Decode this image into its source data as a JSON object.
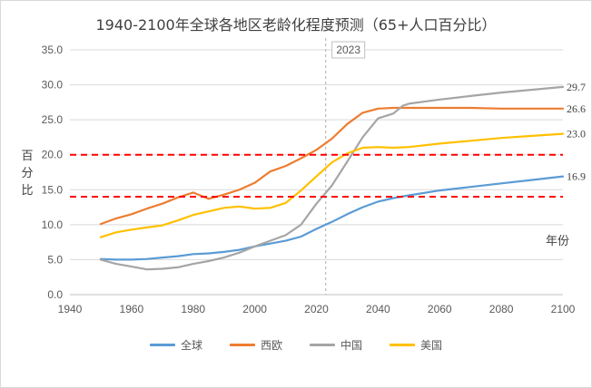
{
  "chart_data": {
    "type": "line",
    "title": "1940-2100年全球各地区老龄化程度预测（65+人口百分比）",
    "ylabel": "百分比",
    "xlabel": "年份",
    "xlim": [
      1940,
      2100
    ],
    "ylim": [
      0,
      35
    ],
    "xticks": [
      "1940",
      "1960",
      "1980",
      "2000",
      "2020",
      "2040",
      "2060",
      "2080",
      "2100"
    ],
    "yticks": [
      "0.0",
      "5.0",
      "10.0",
      "15.0",
      "20.0",
      "25.0",
      "30.0",
      "35.0"
    ],
    "grid": "horizontal",
    "legend_position": "bottom",
    "vertical_marker": {
      "x": 2023,
      "label": "2023"
    },
    "reference_lines": [
      20,
      14
    ],
    "series": [
      {
        "name": "全球",
        "color": "#5B9BD5",
        "end_label": "16.9",
        "points": [
          [
            1950,
            5.1
          ],
          [
            1955,
            5.0
          ],
          [
            1960,
            5.0
          ],
          [
            1965,
            5.1
          ],
          [
            1970,
            5.3
          ],
          [
            1975,
            5.5
          ],
          [
            1980,
            5.8
          ],
          [
            1985,
            5.9
          ],
          [
            1990,
            6.1
          ],
          [
            1995,
            6.4
          ],
          [
            2000,
            6.9
          ],
          [
            2005,
            7.3
          ],
          [
            2010,
            7.7
          ],
          [
            2015,
            8.3
          ],
          [
            2020,
            9.4
          ],
          [
            2025,
            10.4
          ],
          [
            2030,
            11.5
          ],
          [
            2035,
            12.5
          ],
          [
            2040,
            13.3
          ],
          [
            2045,
            13.8
          ],
          [
            2050,
            14.2
          ],
          [
            2060,
            14.9
          ],
          [
            2070,
            15.4
          ],
          [
            2080,
            15.9
          ],
          [
            2090,
            16.4
          ],
          [
            2100,
            16.9
          ]
        ]
      },
      {
        "name": "西欧",
        "color": "#ED7D31",
        "end_label": "26.6",
        "points": [
          [
            1950,
            10.1
          ],
          [
            1955,
            10.9
          ],
          [
            1960,
            11.5
          ],
          [
            1965,
            12.3
          ],
          [
            1970,
            13.0
          ],
          [
            1975,
            13.9
          ],
          [
            1980,
            14.6
          ],
          [
            1985,
            13.7
          ],
          [
            1990,
            14.3
          ],
          [
            1995,
            15.0
          ],
          [
            2000,
            16.0
          ],
          [
            2005,
            17.6
          ],
          [
            2010,
            18.4
          ],
          [
            2015,
            19.5
          ],
          [
            2020,
            20.7
          ],
          [
            2025,
            22.3
          ],
          [
            2030,
            24.4
          ],
          [
            2035,
            26.0
          ],
          [
            2040,
            26.6
          ],
          [
            2045,
            26.7
          ],
          [
            2050,
            26.7
          ],
          [
            2060,
            26.7
          ],
          [
            2070,
            26.7
          ],
          [
            2080,
            26.6
          ],
          [
            2090,
            26.6
          ],
          [
            2100,
            26.6
          ]
        ]
      },
      {
        "name": "中国",
        "color": "#A5A5A5",
        "end_label": "29.7",
        "points": [
          [
            1950,
            5.0
          ],
          [
            1955,
            4.4
          ],
          [
            1960,
            4.0
          ],
          [
            1965,
            3.6
          ],
          [
            1970,
            3.7
          ],
          [
            1975,
            3.9
          ],
          [
            1980,
            4.4
          ],
          [
            1985,
            4.8
          ],
          [
            1990,
            5.3
          ],
          [
            1995,
            6.0
          ],
          [
            2000,
            6.9
          ],
          [
            2005,
            7.7
          ],
          [
            2010,
            8.5
          ],
          [
            2015,
            10.0
          ],
          [
            2020,
            13.0
          ],
          [
            2025,
            15.6
          ],
          [
            2030,
            19.0
          ],
          [
            2035,
            22.5
          ],
          [
            2040,
            25.2
          ],
          [
            2045,
            25.9
          ],
          [
            2048,
            27.0
          ],
          [
            2050,
            27.3
          ],
          [
            2060,
            27.9
          ],
          [
            2070,
            28.4
          ],
          [
            2080,
            28.9
          ],
          [
            2090,
            29.3
          ],
          [
            2100,
            29.7
          ]
        ]
      },
      {
        "name": "美国",
        "color": "#FFC000",
        "end_label": "23.0",
        "points": [
          [
            1950,
            8.2
          ],
          [
            1955,
            8.9
          ],
          [
            1960,
            9.3
          ],
          [
            1965,
            9.6
          ],
          [
            1970,
            9.9
          ],
          [
            1975,
            10.6
          ],
          [
            1980,
            11.4
          ],
          [
            1985,
            11.9
          ],
          [
            1990,
            12.4
          ],
          [
            1995,
            12.6
          ],
          [
            2000,
            12.3
          ],
          [
            2005,
            12.4
          ],
          [
            2010,
            13.1
          ],
          [
            2015,
            14.9
          ],
          [
            2020,
            16.9
          ],
          [
            2025,
            18.9
          ],
          [
            2030,
            20.2
          ],
          [
            2035,
            21.0
          ],
          [
            2040,
            21.1
          ],
          [
            2045,
            21.0
          ],
          [
            2050,
            21.1
          ],
          [
            2060,
            21.6
          ],
          [
            2070,
            22.0
          ],
          [
            2080,
            22.4
          ],
          [
            2090,
            22.7
          ],
          [
            2100,
            23.0
          ]
        ]
      }
    ]
  }
}
